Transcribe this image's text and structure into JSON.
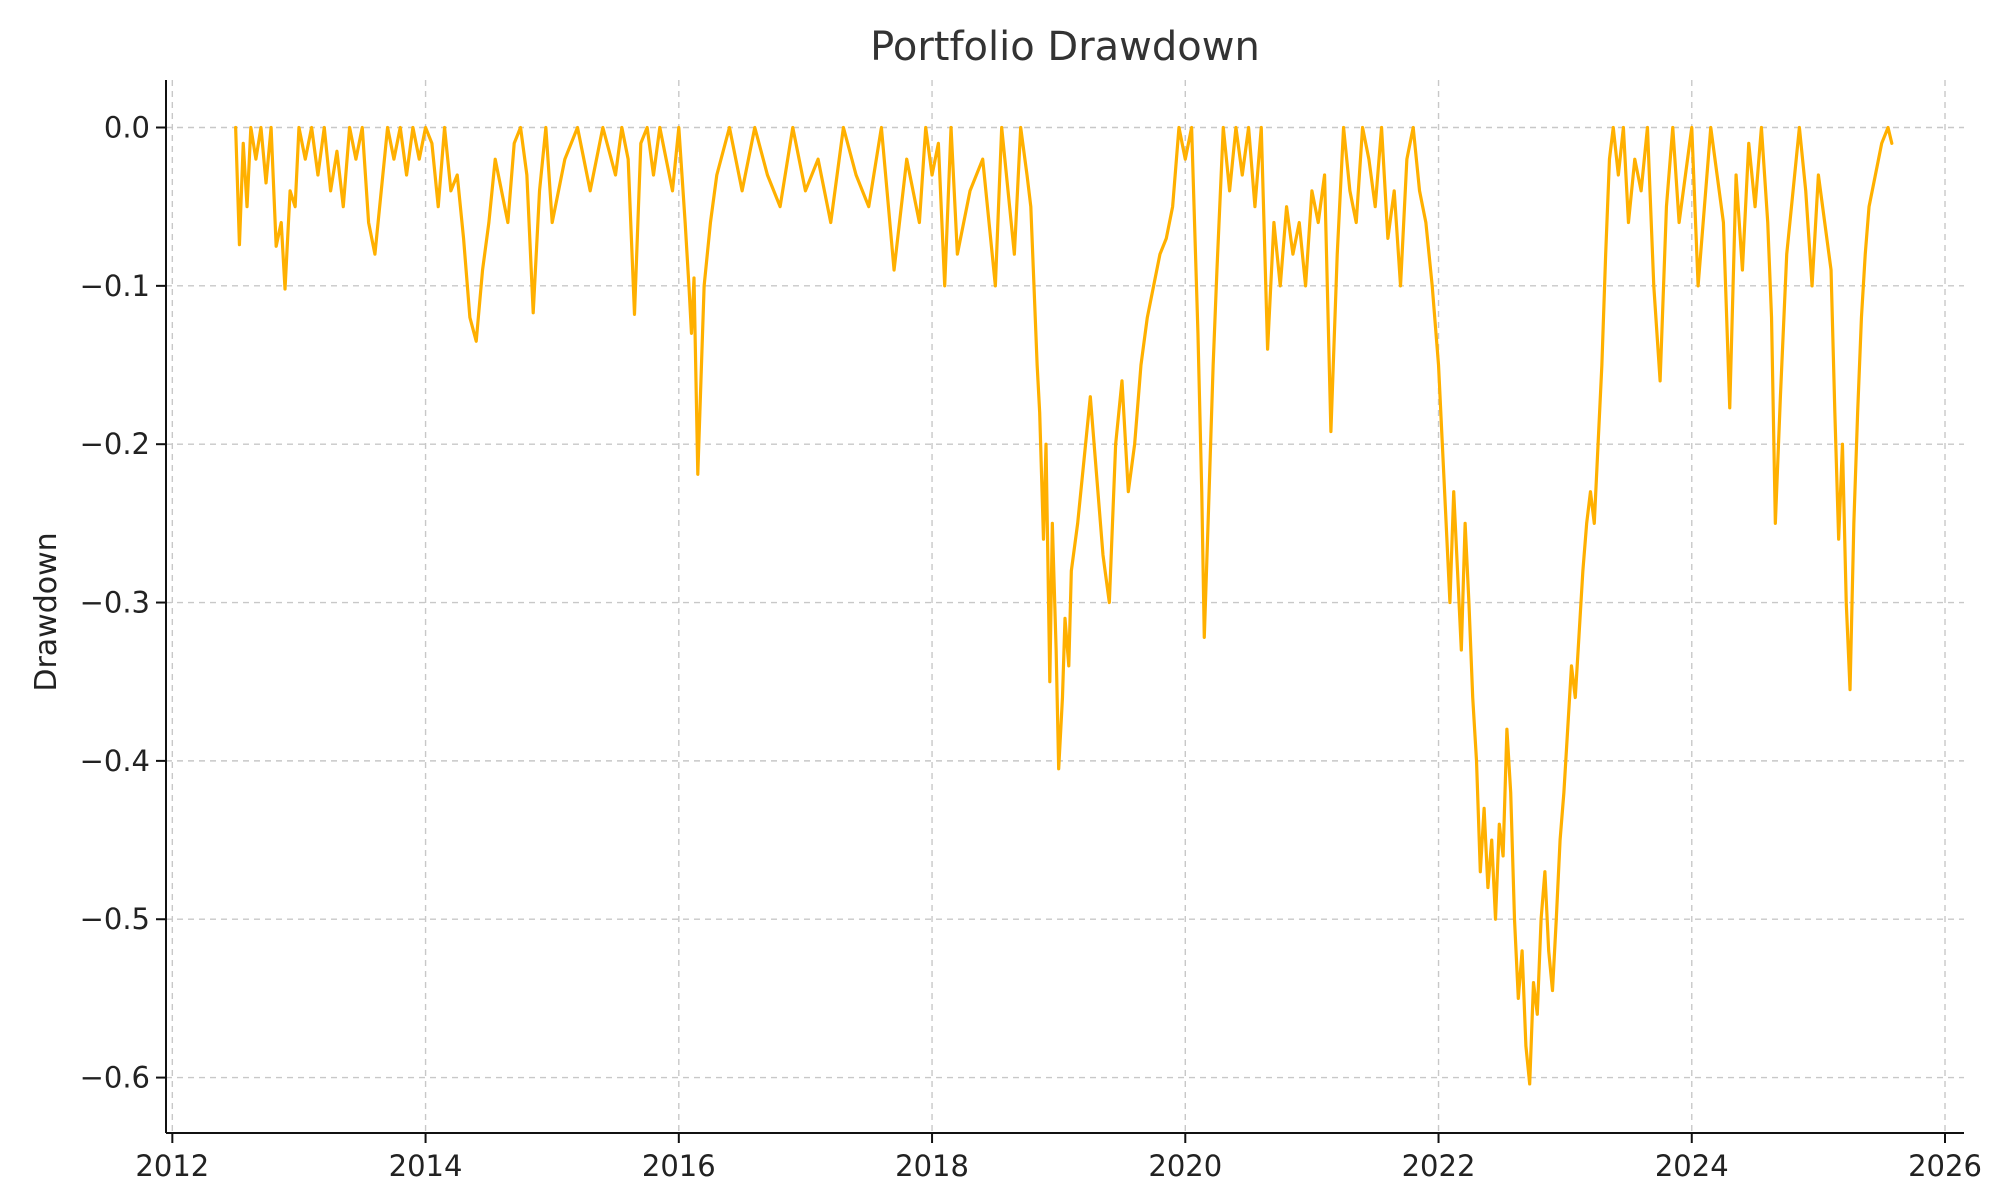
{
  "chart_data": {
    "type": "line",
    "title": "Portfolio Drawdown",
    "xlabel": "",
    "ylabel": "Drawdown",
    "xlim": [
      2011.95,
      2026.15
    ],
    "ylim": [
      -0.635,
      0.03
    ],
    "grid": true,
    "legend": "none",
    "colors": {
      "series": "#ffb000",
      "grid": "#c8c8c8",
      "axis": "#111111"
    },
    "x_ticks": [
      2012,
      2014,
      2016,
      2018,
      2020,
      2022,
      2024,
      2026
    ],
    "x_tick_labels": [
      "2012",
      "2014",
      "2016",
      "2018",
      "2020",
      "2022",
      "2024",
      "2026"
    ],
    "y_ticks": [
      0.0,
      -0.1,
      -0.2,
      -0.3,
      -0.4,
      -0.5,
      -0.6
    ],
    "y_tick_labels": [
      "0.0",
      "−0.1",
      "−0.2",
      "−0.3",
      "−0.4",
      "−0.5",
      "−0.6"
    ],
    "series": [
      {
        "x": [
          2012.5,
          2012.53,
          2012.56,
          2012.59,
          2012.62,
          2012.66,
          2012.7,
          2012.74,
          2012.78,
          2012.82,
          2012.86,
          2012.89,
          2012.93,
          2012.97,
          2013.0,
          2013.05,
          2013.1,
          2013.15,
          2013.2,
          2013.25,
          2013.3,
          2013.35,
          2013.4,
          2013.45,
          2013.5,
          2013.55,
          2013.6,
          2013.65,
          2013.7,
          2013.75,
          2013.8,
          2013.85,
          2013.9,
          2013.95,
          2014.0,
          2014.05,
          2014.1,
          2014.15,
          2014.2,
          2014.25,
          2014.3,
          2014.35,
          2014.4,
          2014.45,
          2014.5,
          2014.55,
          2014.6,
          2014.65,
          2014.7,
          2014.75,
          2014.8,
          2014.85,
          2014.9,
          2014.95,
          2015.0,
          2015.1,
          2015.2,
          2015.3,
          2015.4,
          2015.5,
          2015.55,
          2015.6,
          2015.65,
          2015.7,
          2015.75,
          2015.8,
          2015.85,
          2015.9,
          2015.95,
          2016.0,
          2016.05,
          2016.08,
          2016.1,
          2016.12,
          2016.15,
          2016.2,
          2016.25,
          2016.3,
          2016.4,
          2016.5,
          2016.6,
          2016.7,
          2016.8,
          2016.9,
          2017.0,
          2017.1,
          2017.2,
          2017.3,
          2017.4,
          2017.5,
          2017.6,
          2017.7,
          2017.8,
          2017.9,
          2017.95,
          2018.0,
          2018.05,
          2018.1,
          2018.15,
          2018.2,
          2018.3,
          2018.4,
          2018.5,
          2018.55,
          2018.6,
          2018.65,
          2018.7,
          2018.75,
          2018.78,
          2018.8,
          2018.83,
          2018.85,
          2018.88,
          2018.9,
          2018.93,
          2018.95,
          2018.98,
          2019.0,
          2019.03,
          2019.05,
          2019.08,
          2019.1,
          2019.15,
          2019.2,
          2019.25,
          2019.3,
          2019.35,
          2019.4,
          2019.45,
          2019.5,
          2019.55,
          2019.6,
          2019.65,
          2019.7,
          2019.75,
          2019.8,
          2019.85,
          2019.9,
          2019.95,
          2020.0,
          2020.05,
          2020.1,
          2020.13,
          2020.15,
          2020.18,
          2020.2,
          2020.22,
          2020.25,
          2020.3,
          2020.35,
          2020.4,
          2020.45,
          2020.5,
          2020.55,
          2020.6,
          2020.65,
          2020.7,
          2020.75,
          2020.8,
          2020.85,
          2020.9,
          2020.95,
          2021.0,
          2021.05,
          2021.1,
          2021.15,
          2021.2,
          2021.25,
          2021.3,
          2021.35,
          2021.4,
          2021.45,
          2021.5,
          2021.55,
          2021.6,
          2021.65,
          2021.7,
          2021.75,
          2021.8,
          2021.85,
          2021.9,
          2021.95,
          2022.0,
          2022.03,
          2022.06,
          2022.09,
          2022.12,
          2022.15,
          2022.18,
          2022.21,
          2022.24,
          2022.27,
          2022.3,
          2022.33,
          2022.36,
          2022.39,
          2022.42,
          2022.45,
          2022.48,
          2022.51,
          2022.54,
          2022.57,
          2022.6,
          2022.63,
          2022.66,
          2022.69,
          2022.72,
          2022.75,
          2022.78,
          2022.81,
          2022.84,
          2022.87,
          2022.9,
          2022.93,
          2022.96,
          2022.99,
          2023.02,
          2023.05,
          2023.08,
          2023.11,
          2023.14,
          2023.17,
          2023.2,
          2023.23,
          2023.26,
          2023.29,
          2023.32,
          2023.35,
          2023.38,
          2023.42,
          2023.46,
          2023.5,
          2023.55,
          2023.6,
          2023.65,
          2023.7,
          2023.75,
          2023.8,
          2023.85,
          2023.9,
          2023.95,
          2024.0,
          2024.05,
          2024.1,
          2024.15,
          2024.2,
          2024.25,
          2024.3,
          2024.35,
          2024.4,
          2024.45,
          2024.5,
          2024.55,
          2024.6,
          2024.63,
          2024.66,
          2024.7,
          2024.75,
          2024.8,
          2024.85,
          2024.9,
          2024.95,
          2025.0,
          2025.05,
          2025.1,
          2025.13,
          2025.16,
          2025.19,
          2025.22,
          2025.25,
          2025.28,
          2025.31,
          2025.34,
          2025.37,
          2025.4,
          2025.45,
          2025.5,
          2025.55,
          2025.58
        ],
        "y": [
          0.0,
          -0.074,
          -0.01,
          -0.05,
          0.0,
          -0.02,
          0.0,
          -0.035,
          0.0,
          -0.075,
          -0.06,
          -0.102,
          -0.04,
          -0.05,
          0.0,
          -0.02,
          0.0,
          -0.03,
          0.0,
          -0.04,
          -0.015,
          -0.05,
          0.0,
          -0.02,
          0.0,
          -0.06,
          -0.08,
          -0.04,
          0.0,
          -0.02,
          0.0,
          -0.03,
          0.0,
          -0.02,
          0.0,
          -0.01,
          -0.05,
          0.0,
          -0.04,
          -0.03,
          -0.07,
          -0.12,
          -0.135,
          -0.09,
          -0.06,
          -0.02,
          -0.04,
          -0.06,
          -0.01,
          0.0,
          -0.03,
          -0.117,
          -0.04,
          0.0,
          -0.06,
          -0.02,
          0.0,
          -0.04,
          0.0,
          -0.03,
          0.0,
          -0.02,
          -0.118,
          -0.01,
          0.0,
          -0.03,
          0.0,
          -0.02,
          -0.04,
          0.0,
          -0.06,
          -0.1,
          -0.13,
          -0.095,
          -0.219,
          -0.1,
          -0.06,
          -0.03,
          0.0,
          -0.04,
          0.0,
          -0.03,
          -0.05,
          0.0,
          -0.04,
          -0.02,
          -0.06,
          0.0,
          -0.03,
          -0.05,
          0.0,
          -0.09,
          -0.02,
          -0.06,
          0.0,
          -0.03,
          -0.01,
          -0.1,
          0.0,
          -0.08,
          -0.04,
          -0.02,
          -0.1,
          0.0,
          -0.04,
          -0.08,
          0.0,
          -0.03,
          -0.05,
          -0.09,
          -0.15,
          -0.18,
          -0.26,
          -0.2,
          -0.35,
          -0.25,
          -0.33,
          -0.405,
          -0.36,
          -0.31,
          -0.34,
          -0.28,
          -0.25,
          -0.21,
          -0.17,
          -0.22,
          -0.27,
          -0.3,
          -0.2,
          -0.16,
          -0.23,
          -0.2,
          -0.15,
          -0.12,
          -0.1,
          -0.08,
          -0.07,
          -0.05,
          0.0,
          -0.02,
          0.0,
          -0.13,
          -0.23,
          -0.322,
          -0.25,
          -0.2,
          -0.15,
          -0.09,
          0.0,
          -0.04,
          0.0,
          -0.03,
          0.0,
          -0.05,
          0.0,
          -0.14,
          -0.06,
          -0.1,
          -0.05,
          -0.08,
          -0.06,
          -0.1,
          -0.04,
          -0.06,
          -0.03,
          -0.192,
          -0.08,
          0.0,
          -0.04,
          -0.06,
          0.0,
          -0.02,
          -0.05,
          0.0,
          -0.07,
          -0.04,
          -0.1,
          -0.02,
          0.0,
          -0.04,
          -0.06,
          -0.1,
          -0.15,
          -0.2,
          -0.25,
          -0.3,
          -0.23,
          -0.28,
          -0.33,
          -0.25,
          -0.3,
          -0.36,
          -0.4,
          -0.47,
          -0.43,
          -0.48,
          -0.45,
          -0.5,
          -0.44,
          -0.46,
          -0.38,
          -0.42,
          -0.5,
          -0.55,
          -0.52,
          -0.58,
          -0.604,
          -0.54,
          -0.56,
          -0.5,
          -0.47,
          -0.52,
          -0.545,
          -0.5,
          -0.45,
          -0.42,
          -0.38,
          -0.34,
          -0.36,
          -0.32,
          -0.28,
          -0.25,
          -0.23,
          -0.25,
          -0.2,
          -0.15,
          -0.08,
          -0.02,
          0.0,
          -0.03,
          0.0,
          -0.06,
          -0.02,
          -0.04,
          0.0,
          -0.1,
          -0.16,
          -0.05,
          0.0,
          -0.06,
          -0.03,
          0.0,
          -0.1,
          -0.05,
          0.0,
          -0.03,
          -0.06,
          -0.177,
          -0.03,
          -0.09,
          -0.01,
          -0.05,
          0.0,
          -0.06,
          -0.12,
          -0.25,
          -0.17,
          -0.08,
          -0.04,
          0.0,
          -0.04,
          -0.1,
          -0.03,
          -0.06,
          -0.09,
          -0.18,
          -0.26,
          -0.2,
          -0.3,
          -0.355,
          -0.25,
          -0.18,
          -0.12,
          -0.08,
          -0.05,
          -0.03,
          -0.01,
          0.0,
          -0.01
        ]
      }
    ]
  }
}
